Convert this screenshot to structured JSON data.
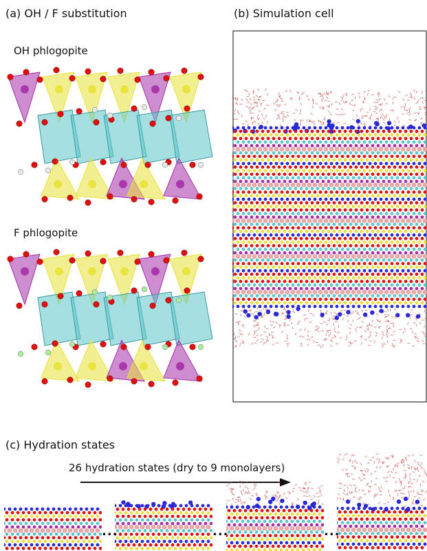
{
  "panels": {
    "a": {
      "title": "(a) OH / F substitution",
      "top_label": "OH phlogopite",
      "bottom_label": "F phlogopite"
    },
    "b": {
      "title": "(b) Simulation cell"
    },
    "c": {
      "title": "(c) Hydration states",
      "arrow_label": "26 hydration states (dry to 9 monolayers)",
      "separator": "..."
    }
  },
  "colors": {
    "tetra_yellow": "#e8e23a",
    "tetra_purple": "#a62fa8",
    "octa_cyan": "#5cc4c8",
    "oxygen_red": "#e01010",
    "hydrogen_white": "#e8e8e8",
    "fluorine_green": "#a8f0a0",
    "potassium_blue": "#2828d8",
    "aluminum_pink": "#e8a8a8",
    "water": "#c84848"
  }
}
